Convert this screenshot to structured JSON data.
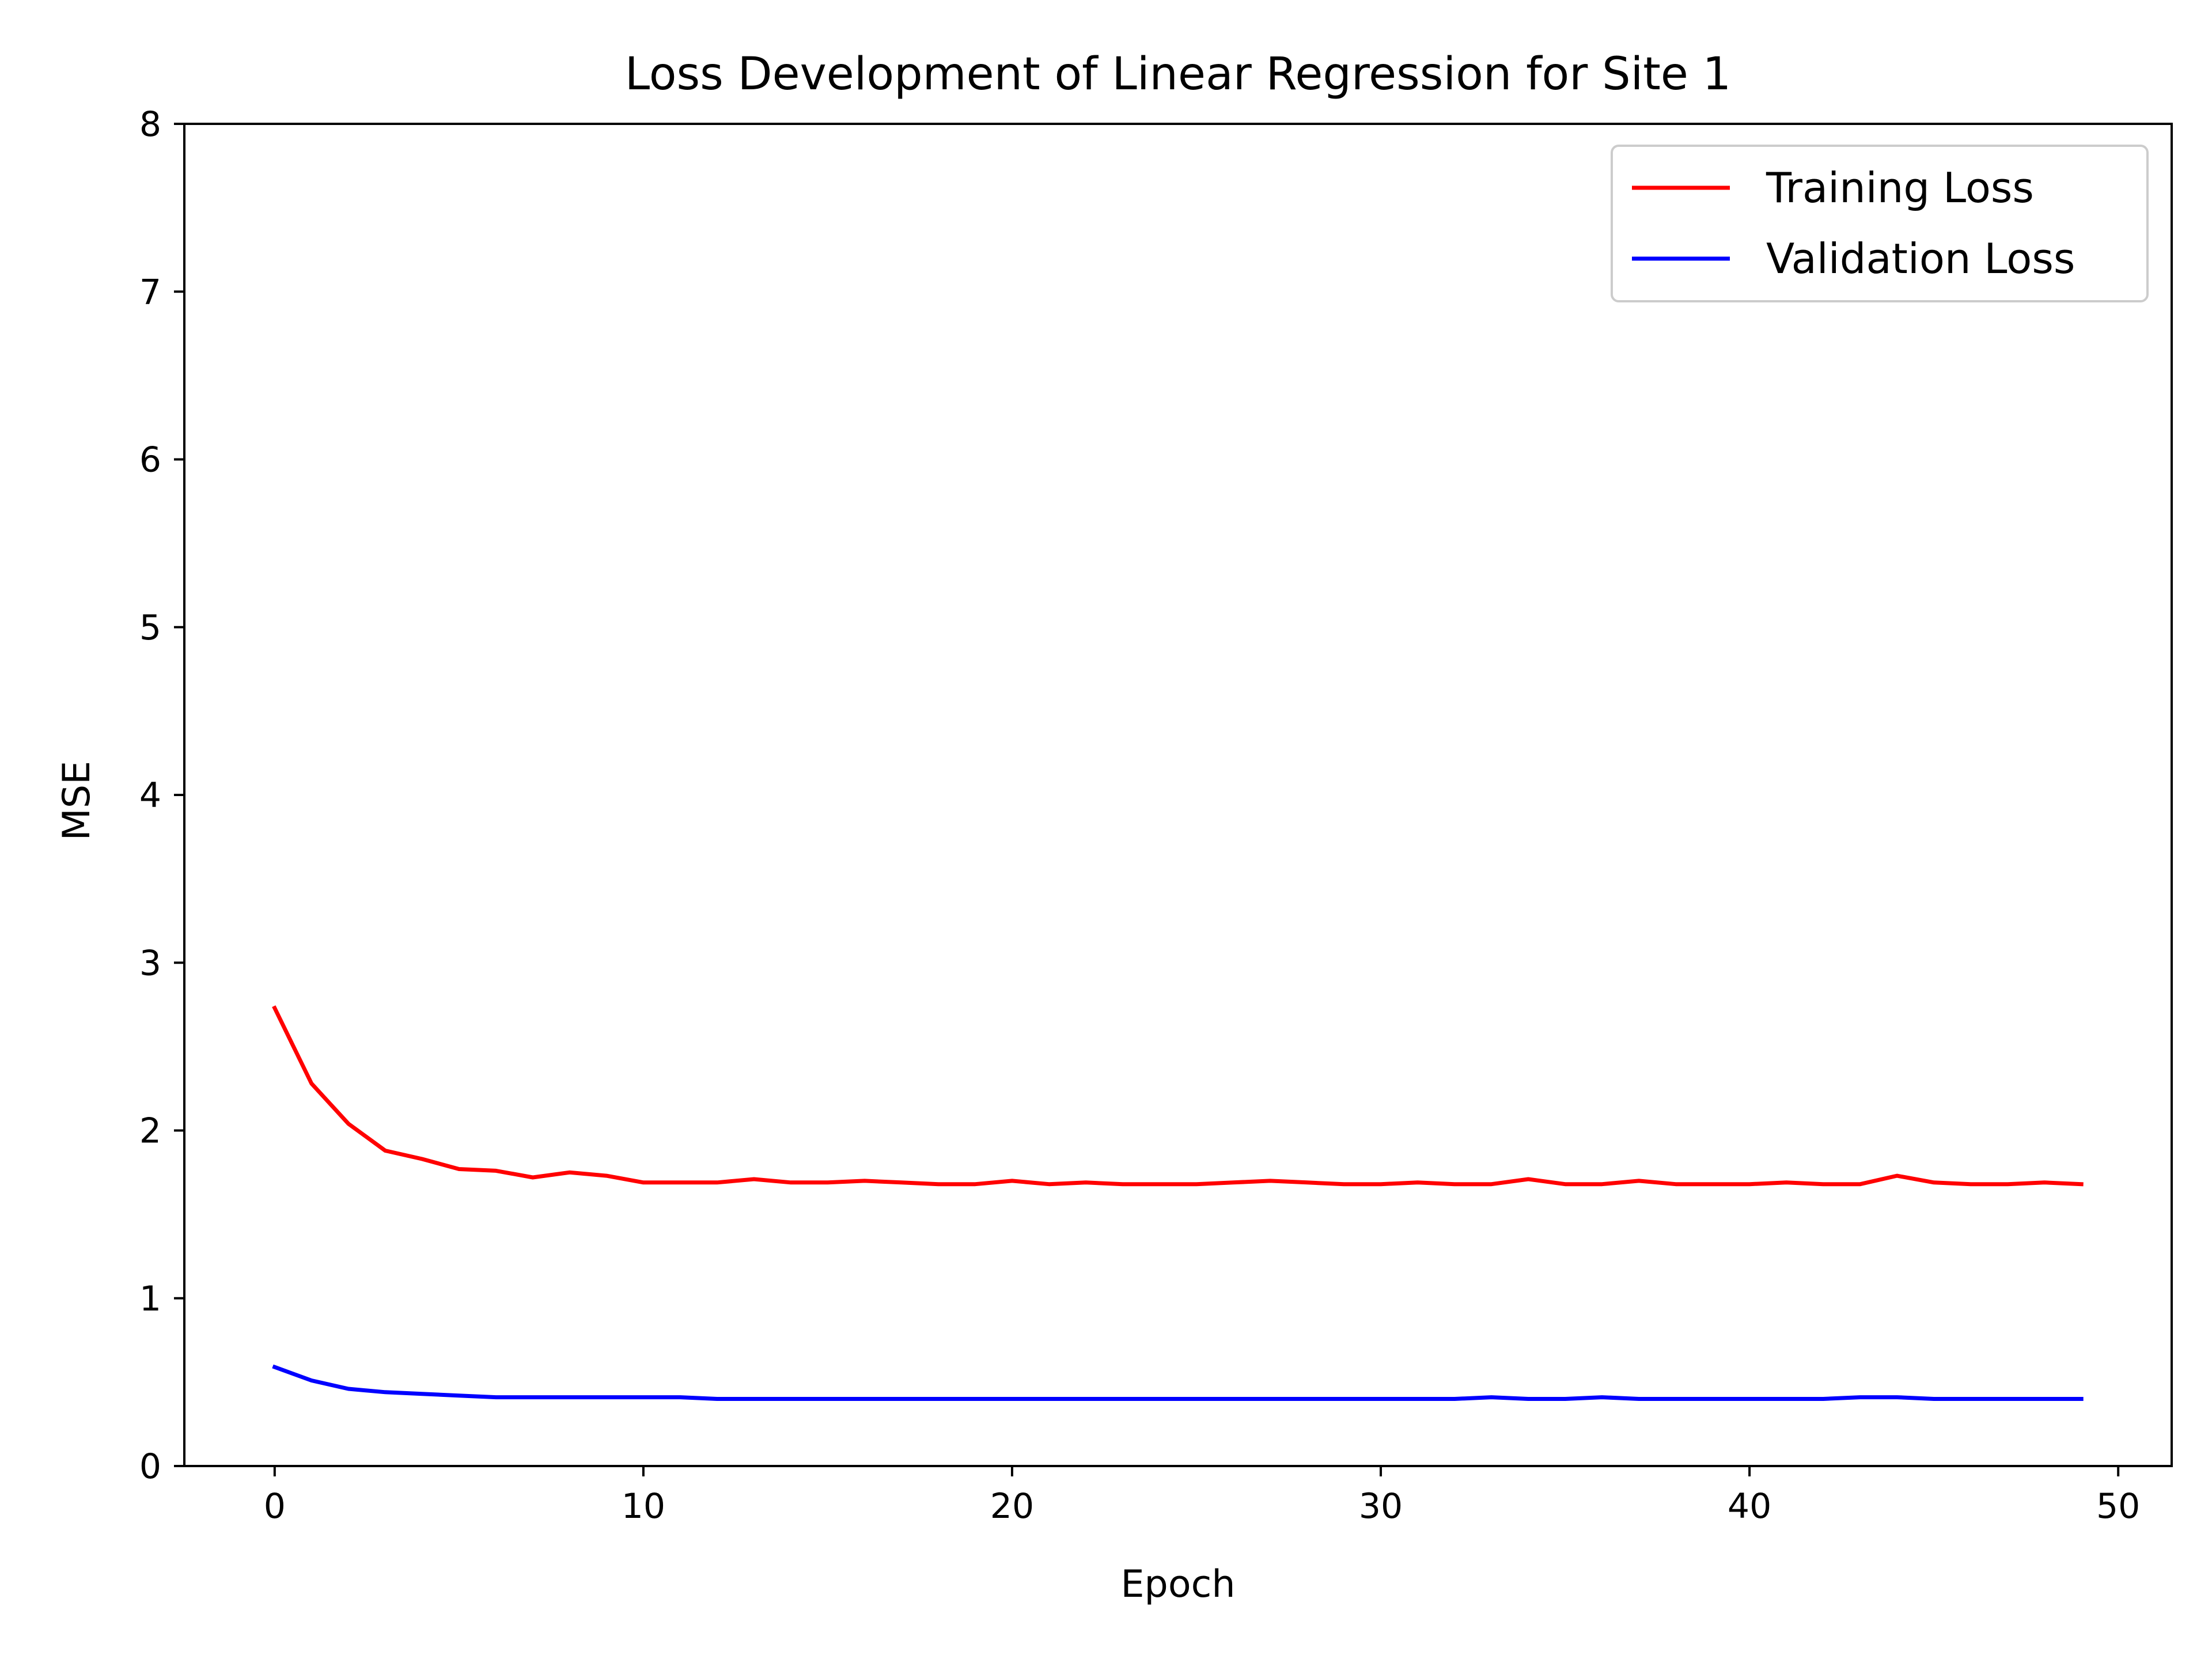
{
  "chart_data": {
    "type": "line",
    "title": "Loss Development of Linear Regression for Site 1",
    "xlabel": "Epoch",
    "ylabel": "MSE",
    "xlim": [
      -2.45,
      51.45
    ],
    "ylim": [
      0,
      8
    ],
    "xticks": [
      0,
      10,
      20,
      30,
      40,
      50
    ],
    "yticks": [
      0,
      1,
      2,
      3,
      4,
      5,
      6,
      7,
      8
    ],
    "grid": false,
    "legend_position": "top-right",
    "x": [
      0,
      1,
      2,
      3,
      4,
      5,
      6,
      7,
      8,
      9,
      10,
      11,
      12,
      13,
      14,
      15,
      16,
      17,
      18,
      19,
      20,
      21,
      22,
      23,
      24,
      25,
      26,
      27,
      28,
      29,
      30,
      31,
      32,
      33,
      34,
      35,
      36,
      37,
      38,
      39,
      40,
      41,
      42,
      43,
      44,
      45,
      46,
      47,
      48,
      49
    ],
    "series": [
      {
        "name": "Training Loss",
        "color": "#ff0000",
        "values": [
          2.73,
          2.28,
          2.04,
          1.88,
          1.83,
          1.77,
          1.76,
          1.72,
          1.75,
          1.73,
          1.69,
          1.69,
          1.69,
          1.71,
          1.69,
          1.69,
          1.7,
          1.69,
          1.68,
          1.68,
          1.7,
          1.68,
          1.69,
          1.68,
          1.68,
          1.68,
          1.69,
          1.7,
          1.69,
          1.68,
          1.68,
          1.69,
          1.68,
          1.68,
          1.71,
          1.68,
          1.68,
          1.7,
          1.68,
          1.68,
          1.68,
          1.69,
          1.68,
          1.68,
          1.73,
          1.69,
          1.68,
          1.68,
          1.69,
          1.68
        ]
      },
      {
        "name": "Validation Loss",
        "color": "#0000ff",
        "values": [
          0.59,
          0.51,
          0.46,
          0.44,
          0.43,
          0.42,
          0.41,
          0.41,
          0.41,
          0.41,
          0.41,
          0.41,
          0.4,
          0.4,
          0.4,
          0.4,
          0.4,
          0.4,
          0.4,
          0.4,
          0.4,
          0.4,
          0.4,
          0.4,
          0.4,
          0.4,
          0.4,
          0.4,
          0.4,
          0.4,
          0.4,
          0.4,
          0.4,
          0.41,
          0.4,
          0.4,
          0.41,
          0.4,
          0.4,
          0.4,
          0.4,
          0.4,
          0.4,
          0.41,
          0.41,
          0.4,
          0.4,
          0.4,
          0.4,
          0.4
        ]
      }
    ]
  }
}
